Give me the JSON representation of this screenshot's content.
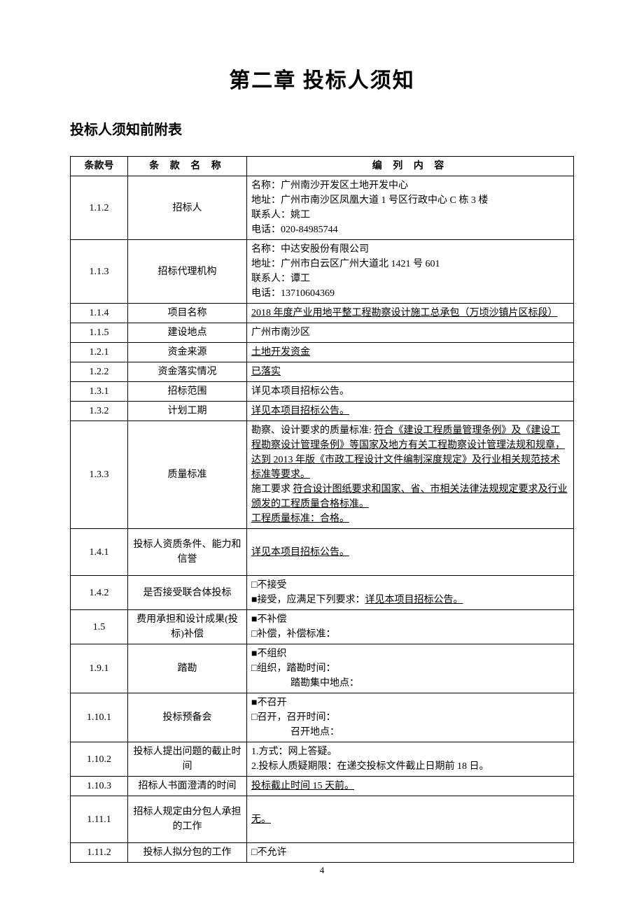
{
  "page": {
    "chapter_title": "第二章 投标人须知",
    "section_title": "投标人须知前附表",
    "page_number": "4",
    "colors": {
      "background": "#ffffff",
      "text": "#000000",
      "border": "#000000"
    },
    "typography": {
      "body_font": "SimSun",
      "body_size_pt": 10.5,
      "title_size_pt": 22,
      "section_size_pt": 16
    }
  },
  "table": {
    "headers": {
      "num": "条款号",
      "name": "条 款 名 称",
      "content": "编 列 内 容"
    },
    "rows": [
      {
        "num": "1.1.2",
        "name": "招标人",
        "lines": [
          {
            "text": "名称：广州南沙开发区土地开发中心"
          },
          {
            "text": "地址：广州市南沙区凤凰大道 1 号区行政中心 C 栋 3 楼"
          },
          {
            "text": "联系人：姚工"
          },
          {
            "text": "电话：020-84985744"
          }
        ]
      },
      {
        "num": "1.1.3",
        "name": "招标代理机构",
        "lines": [
          {
            "text": "名称：中达安股份有限公司"
          },
          {
            "text": "地址：广州市白云区广州大道北 1421 号 601"
          },
          {
            "text": "联系人：谭工"
          },
          {
            "text": "电话：13710604369"
          }
        ]
      },
      {
        "num": "1.1.4",
        "name": "项目名称",
        "lines": [
          {
            "text": "2018 年度产业用地平整工程勘察设计施工总承包（万顷沙镇片区标段）",
            "underline": true
          }
        ]
      },
      {
        "num": "1.1.5",
        "name": "建设地点",
        "lines": [
          {
            "text": "广州市南沙区"
          }
        ]
      },
      {
        "num": "1.2.1",
        "name": "资金来源",
        "lines": [
          {
            "text": "土地开发资金",
            "underline": true
          }
        ]
      },
      {
        "num": "1.2.2",
        "name": "资金落实情况",
        "lines": [
          {
            "text": "已落实",
            "underline": true
          }
        ]
      },
      {
        "num": "1.3.1",
        "name": "招标范围",
        "lines": [
          {
            "text": "详见本项目招标公告。"
          }
        ]
      },
      {
        "num": "1.3.2",
        "name": "计划工期",
        "lines": [
          {
            "text": "详见本项目招标公告。",
            "underline": true
          }
        ]
      },
      {
        "num": "1.3.3",
        "name": "质量标准",
        "lines": [
          {
            "prefix": "勘察、设计要求的质量标准: ",
            "underline_text": "符合《建设工程质量管理条例》及《建设工程勘察设计管理条例》等国家及地方有关工程勘察设计管理法规和规章，达到 2013 年版《市政工程设计文件编制深度规定》及行业相关规范技术标准等要求。"
          },
          {
            "prefix": "施工要求 ",
            "underline_text": "符合设计图纸要求和国家、省、市相关法律法规规定要求及行业颁发的工程质量合格标准。"
          },
          {
            "text": "工程质量标准：合格。",
            "underline": true
          }
        ]
      },
      {
        "num": "1.4.1",
        "name": "投标人资质条件、能力和信誉",
        "name_pad": true,
        "lines": [
          {
            "text": "详见本项目招标公告。",
            "underline": true
          }
        ]
      },
      {
        "num": "1.4.2",
        "name": "是否接受联合体投标",
        "lines": [
          {
            "text": "□不接受"
          },
          {
            "prefix": "■接受，应满足下列要求：",
            "underline_text": "详见本项目招标公告。"
          }
        ]
      },
      {
        "num": "1.5",
        "name": "费用承担和设计成果(投标)补偿",
        "lines": [
          {
            "text": "■不补偿"
          },
          {
            "text": "□补偿，补偿标准："
          }
        ]
      },
      {
        "num": "1.9.1",
        "name": "踏勘",
        "lines": [
          {
            "text": "■不组织"
          },
          {
            "text": "□组织，踏勘时间："
          },
          {
            "text": "踏勘集中地点：",
            "indent": true
          }
        ]
      },
      {
        "num": "1.10.1",
        "name": "投标预备会",
        "lines": [
          {
            "text": "■不召开"
          },
          {
            "text": "□召开，召开时间："
          },
          {
            "text": "召开地点：",
            "indent": true
          }
        ]
      },
      {
        "num": "1.10.2",
        "name": "投标人提出问题的截止时间",
        "lines": [
          {
            "text": "1.方式：网上答疑。"
          },
          {
            "text": "2.投标人质疑期限：在递交投标文件截止日期前 18 日。"
          }
        ]
      },
      {
        "num": "1.10.3",
        "name": "招标人书面澄清的时间",
        "lines": [
          {
            "text": "投标截止时间 15 天前。",
            "underline": true
          }
        ]
      },
      {
        "num": "1.11.1",
        "name": "招标人规定由分包人承担的工作",
        "name_pad": true,
        "lines": [
          {
            "text": "无。",
            "underline": true
          }
        ]
      },
      {
        "num": "1.11.2",
        "name": "投标人拟分包的工作",
        "lines": [
          {
            "text": "□不允许"
          }
        ]
      }
    ]
  }
}
